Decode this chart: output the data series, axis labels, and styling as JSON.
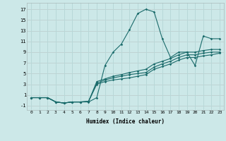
{
  "xlabel": "Humidex (Indice chaleur)",
  "bg_color": "#cce8e8",
  "grid_color_major": "#e8b8b8",
  "grid_color_minor": "#b8d8d8",
  "line_color": "#1a6b6b",
  "xlim": [
    -0.5,
    23.5
  ],
  "ylim": [
    -1.8,
    18.2
  ],
  "xticks": [
    0,
    1,
    2,
    3,
    4,
    5,
    6,
    7,
    8,
    9,
    10,
    11,
    12,
    13,
    14,
    15,
    16,
    17,
    18,
    19,
    20,
    21,
    22,
    23
  ],
  "yticks": [
    -1,
    1,
    3,
    5,
    7,
    9,
    11,
    13,
    15,
    17
  ],
  "series": [
    [
      0.5,
      0.5,
      0.5,
      -0.3,
      -0.5,
      -0.3,
      -0.3,
      -0.3,
      0.5,
      6.5,
      9.0,
      10.5,
      13.2,
      16.2,
      17.0,
      16.5,
      11.5,
      8.0,
      9.0,
      9.0,
      6.5,
      12.0,
      11.5,
      11.5
    ],
    [
      0.5,
      0.5,
      0.5,
      -0.3,
      -0.5,
      -0.3,
      -0.3,
      -0.2,
      3.5,
      4.0,
      4.5,
      4.8,
      5.2,
      5.5,
      5.8,
      6.8,
      7.3,
      7.8,
      8.5,
      9.0,
      9.0,
      9.3,
      9.5,
      9.5
    ],
    [
      0.5,
      0.5,
      0.5,
      -0.3,
      -0.5,
      -0.3,
      -0.3,
      -0.2,
      3.2,
      3.8,
      4.2,
      4.5,
      4.8,
      5.0,
      5.2,
      6.2,
      6.8,
      7.3,
      8.0,
      8.5,
      8.5,
      8.8,
      9.0,
      9.0
    ],
    [
      0.5,
      0.5,
      0.5,
      -0.3,
      -0.5,
      -0.3,
      -0.3,
      -0.2,
      3.0,
      3.5,
      3.8,
      4.0,
      4.2,
      4.5,
      4.8,
      5.8,
      6.3,
      6.8,
      7.5,
      8.0,
      8.0,
      8.3,
      8.5,
      8.8
    ]
  ]
}
